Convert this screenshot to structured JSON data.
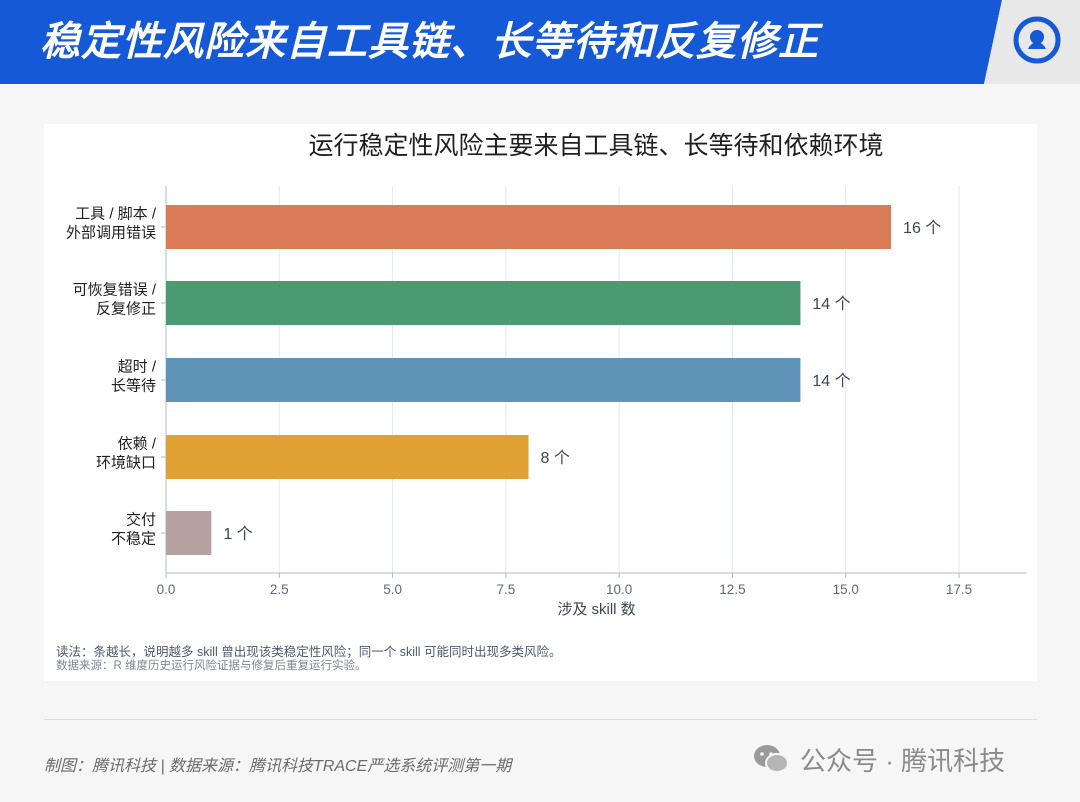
{
  "header": {
    "title": "稳定性风险来自工具链、长等待和反复修正",
    "colors": {
      "banner": "#1559d6",
      "corner": "#e8e8e8",
      "logo": "#1559d6"
    }
  },
  "chart_data": {
    "type": "bar",
    "orientation": "horizontal",
    "title": "运行稳定性风险主要来自工具链、长等待和依赖环境",
    "xlabel": "涉及 skill 数",
    "ylabel": "",
    "xlim": [
      0,
      19
    ],
    "xticks": [
      "0.0",
      "2.5",
      "5.0",
      "7.5",
      "10.0",
      "12.5",
      "15.0",
      "17.5"
    ],
    "grid": "vertical",
    "categories": [
      [
        "工具 / 脚本 /",
        "外部调用错误"
      ],
      [
        "可恢复错误 /",
        "反复修正"
      ],
      [
        "超时 /",
        "长等待"
      ],
      [
        "依赖 /",
        "环境缺口"
      ],
      [
        "交付",
        "不稳定"
      ]
    ],
    "values": [
      16,
      14,
      14,
      8,
      1
    ],
    "value_labels": [
      "16 个",
      "14 个",
      "14 个",
      "8 个",
      "1 个"
    ],
    "colors": [
      "#d97b57",
      "#4c9a72",
      "#5f94b8",
      "#e0a134",
      "#b7a0a0"
    ]
  },
  "notes": {
    "reading": "读法：条越长，说明越多 skill 曾出现该类稳定性风险；同一个 skill 可能同时出现多类风险。",
    "source": "数据来源：R 维度历史运行风险证据与修复后重复运行实验。"
  },
  "footer": {
    "left": "制图：腾讯科技 | 数据来源：腾讯科技TRACE严选系统评测第一期",
    "watermark": "公众号 · 腾讯科技"
  }
}
